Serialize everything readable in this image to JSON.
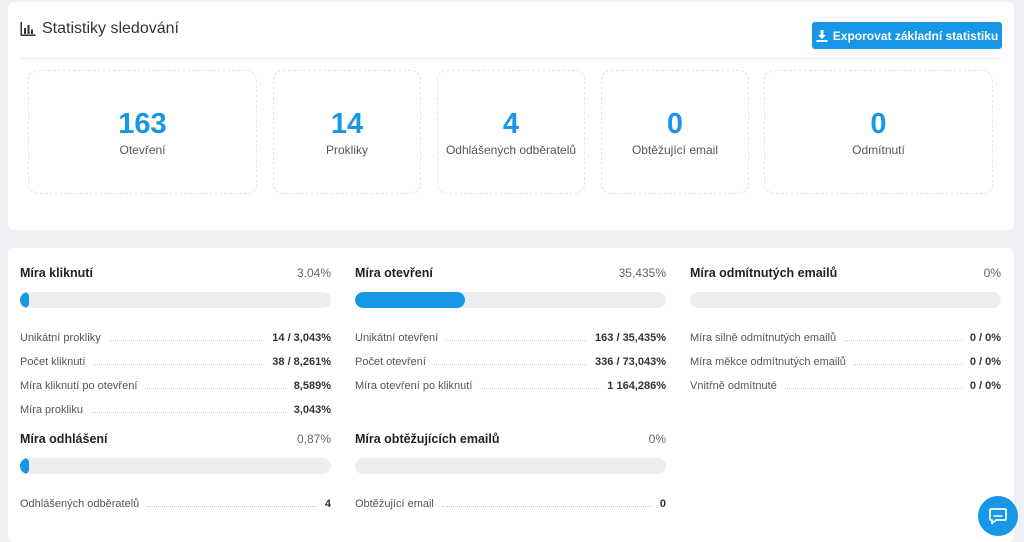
{
  "header": {
    "title": "Statistiky sledování",
    "export_label": "Exporovat základní statistiku"
  },
  "stats": [
    {
      "value": "163",
      "label": "Otevření"
    },
    {
      "value": "14",
      "label": "Prokliky"
    },
    {
      "value": "4",
      "label": "Odhlášených odběratelů"
    },
    {
      "value": "0",
      "label": "Obtěžující email"
    },
    {
      "value": "0",
      "label": "Odmítnutí"
    }
  ],
  "metrics": {
    "clicks": {
      "title": "Míra kliknutí",
      "pct": "3.04%",
      "fill": 0.0304,
      "rows": [
        {
          "label": "Unikátní prokliky",
          "value": "14 / 3,043%"
        },
        {
          "label": "Počet kliknutí",
          "value": "38 / 8,261%"
        },
        {
          "label": "Míra kliknutí po otevření",
          "value": "8,589%"
        },
        {
          "label": "Míra prokliku",
          "value": "3,043%"
        }
      ]
    },
    "opens": {
      "title": "Míra otevření",
      "pct": "35,435%",
      "fill": 0.35435,
      "rows": [
        {
          "label": "Unikátní otevření",
          "value": "163 / 35,435%"
        },
        {
          "label": "Počet otevření",
          "value": "336 / 73,043%"
        },
        {
          "label": "Míra otevření po kliknutí",
          "value": "1 164,286%"
        }
      ]
    },
    "bounces": {
      "title": "Míra odmítnutých emailů",
      "pct": "0%",
      "fill": 0,
      "rows": [
        {
          "label": "Míra silně odmítnutých emailů",
          "value": "0 / 0%"
        },
        {
          "label": "Míra měkce odmítnutých emailů",
          "value": "0 / 0%"
        },
        {
          "label": "Vnitřně odmítnuté",
          "value": "0 / 0%"
        }
      ]
    },
    "unsubscribes": {
      "title": "Míra odhlášení",
      "pct": "0,87%",
      "fill": 0.0087,
      "rows": [
        {
          "label": "Odhlášených odběratelů",
          "value": "4"
        }
      ]
    },
    "complaints": {
      "title": "Míra obtěžujících emailů",
      "pct": "0%",
      "fill": 0,
      "rows": [
        {
          "label": "Obtěžující email",
          "value": "0"
        }
      ]
    }
  },
  "colors": {
    "accent": "#1797e6",
    "bar_track": "#eceef2"
  },
  "icons": {
    "title": "bar-chart-icon",
    "export": "download-icon",
    "chat": "chat-bubble-icon"
  }
}
